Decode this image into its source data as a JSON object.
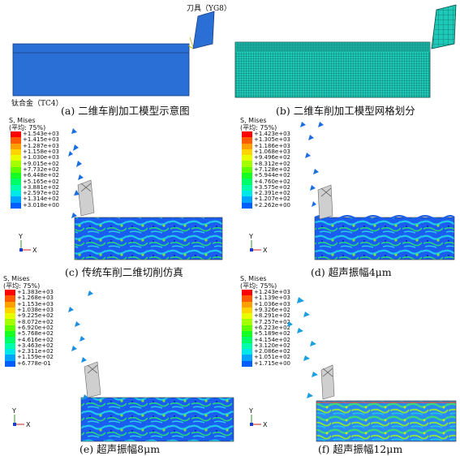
{
  "panels": {
    "a": {
      "caption": "(a) 二维车削加工模型示意图",
      "tool_label": "刀具（YG8）",
      "workpiece_label": "钛合金（TC4）"
    },
    "b": {
      "caption": "(b) 二维车削加工模型网格划分"
    },
    "c": {
      "caption": "(c) 传统车削二维切削仿真"
    },
    "d": {
      "caption": "(d) 超声振幅4μm"
    },
    "e": {
      "caption": "(e) 超声振幅8μm"
    },
    "f": {
      "caption": "(f) 超声振幅12μm"
    }
  },
  "legend_title": {
    "line1": "S, Mises",
    "line2": "(平均: 75%)"
  },
  "legend_colors": [
    "#ff0000",
    "#ff5a00",
    "#ffa000",
    "#ffd400",
    "#e8ff00",
    "#a4ff00",
    "#5eff00",
    "#16ff22",
    "#00ff66",
    "#00ffaa",
    "#00e8e8",
    "#00a4ff",
    "#005eff",
    "#0016ff"
  ],
  "legends": {
    "c": [
      "+1.543e+03",
      "+1.415e+03",
      "+1.287e+03",
      "+1.158e+03",
      "+1.030e+03",
      "+9.015e+02",
      "+7.732e+02",
      "+6.448e+02",
      "+5.165e+02",
      "+3.881e+02",
      "+2.597e+02",
      "+1.314e+02",
      "+3.018e+00"
    ],
    "d": [
      "+1.423e+03",
      "+1.305e+03",
      "+1.186e+03",
      "+1.068e+03",
      "+9.496e+02",
      "+8.312e+02",
      "+7.128e+02",
      "+5.944e+02",
      "+4.760e+02",
      "+3.575e+02",
      "+2.391e+02",
      "+1.207e+02",
      "+2.262e+00"
    ],
    "e": [
      "+1.383e+03",
      "+1.268e+03",
      "+1.153e+03",
      "+1.038e+03",
      "+9.225e+02",
      "+8.072e+02",
      "+6.920e+02",
      "+5.768e+02",
      "+4.616e+02",
      "+3.463e+02",
      "+2.311e+02",
      "+1.159e+02",
      "+6.778e-01"
    ],
    "f": [
      "+1.243e+03",
      "+1.139e+03",
      "+1.036e+03",
      "+9.326e+02",
      "+8.291e+02",
      "+7.257e+02",
      "+6.223e+02",
      "+5.189e+02",
      "+4.154e+02",
      "+3.120e+02",
      "+2.086e+02",
      "+1.051e+02",
      "+1.715e+00"
    ]
  },
  "axes": {
    "y": "Y",
    "x": "X"
  }
}
